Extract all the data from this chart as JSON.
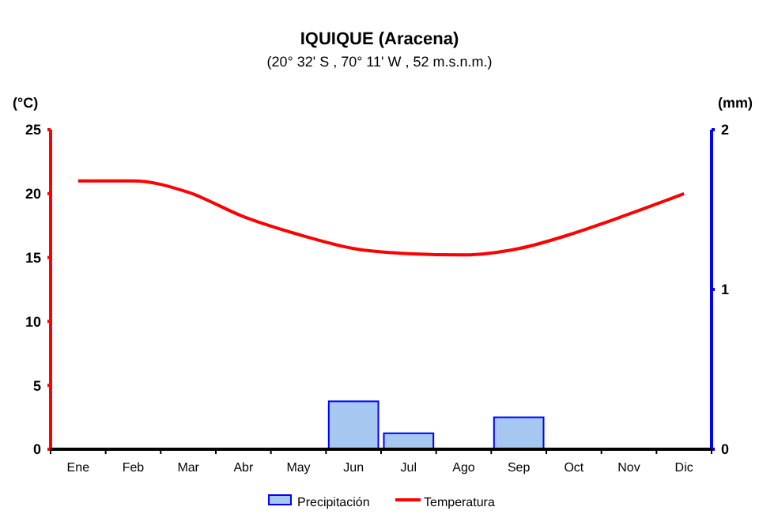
{
  "chart_data": {
    "type": "bar",
    "title": "IQUIQUE  (Aracena)",
    "subtitle": "(20° 32' S , 70° 11' W , 52 m.s.n.m.)",
    "ylabel": "(°C)",
    "y2label": "(mm)",
    "categories": [
      "Ene",
      "Feb",
      "Mar",
      "Abr",
      "May",
      "Jun",
      "Jul",
      "Ago",
      "Sep",
      "Oct",
      "Nov",
      "Dic"
    ],
    "series": [
      {
        "name": "Precipitación",
        "axis": "y2",
        "color": "#a6c8f0",
        "values": [
          0,
          0,
          0,
          0,
          0,
          0.3,
          0.1,
          0,
          0.2,
          0,
          0,
          0
        ]
      },
      {
        "name": "Temperatura",
        "type": "line",
        "axis": "y",
        "color": "#ff0000",
        "values": [
          21,
          21,
          20.1,
          18.2,
          16.8,
          15.7,
          15.3,
          15.2,
          15.7,
          16.9,
          18.4,
          20
        ]
      }
    ],
    "ylim": [
      0,
      25
    ],
    "yticks": [
      0,
      5,
      10,
      15,
      20,
      25
    ],
    "y2lim": [
      0,
      2
    ],
    "y2ticks": [
      0,
      1,
      2
    ],
    "grid": false,
    "legend": "bottom"
  }
}
